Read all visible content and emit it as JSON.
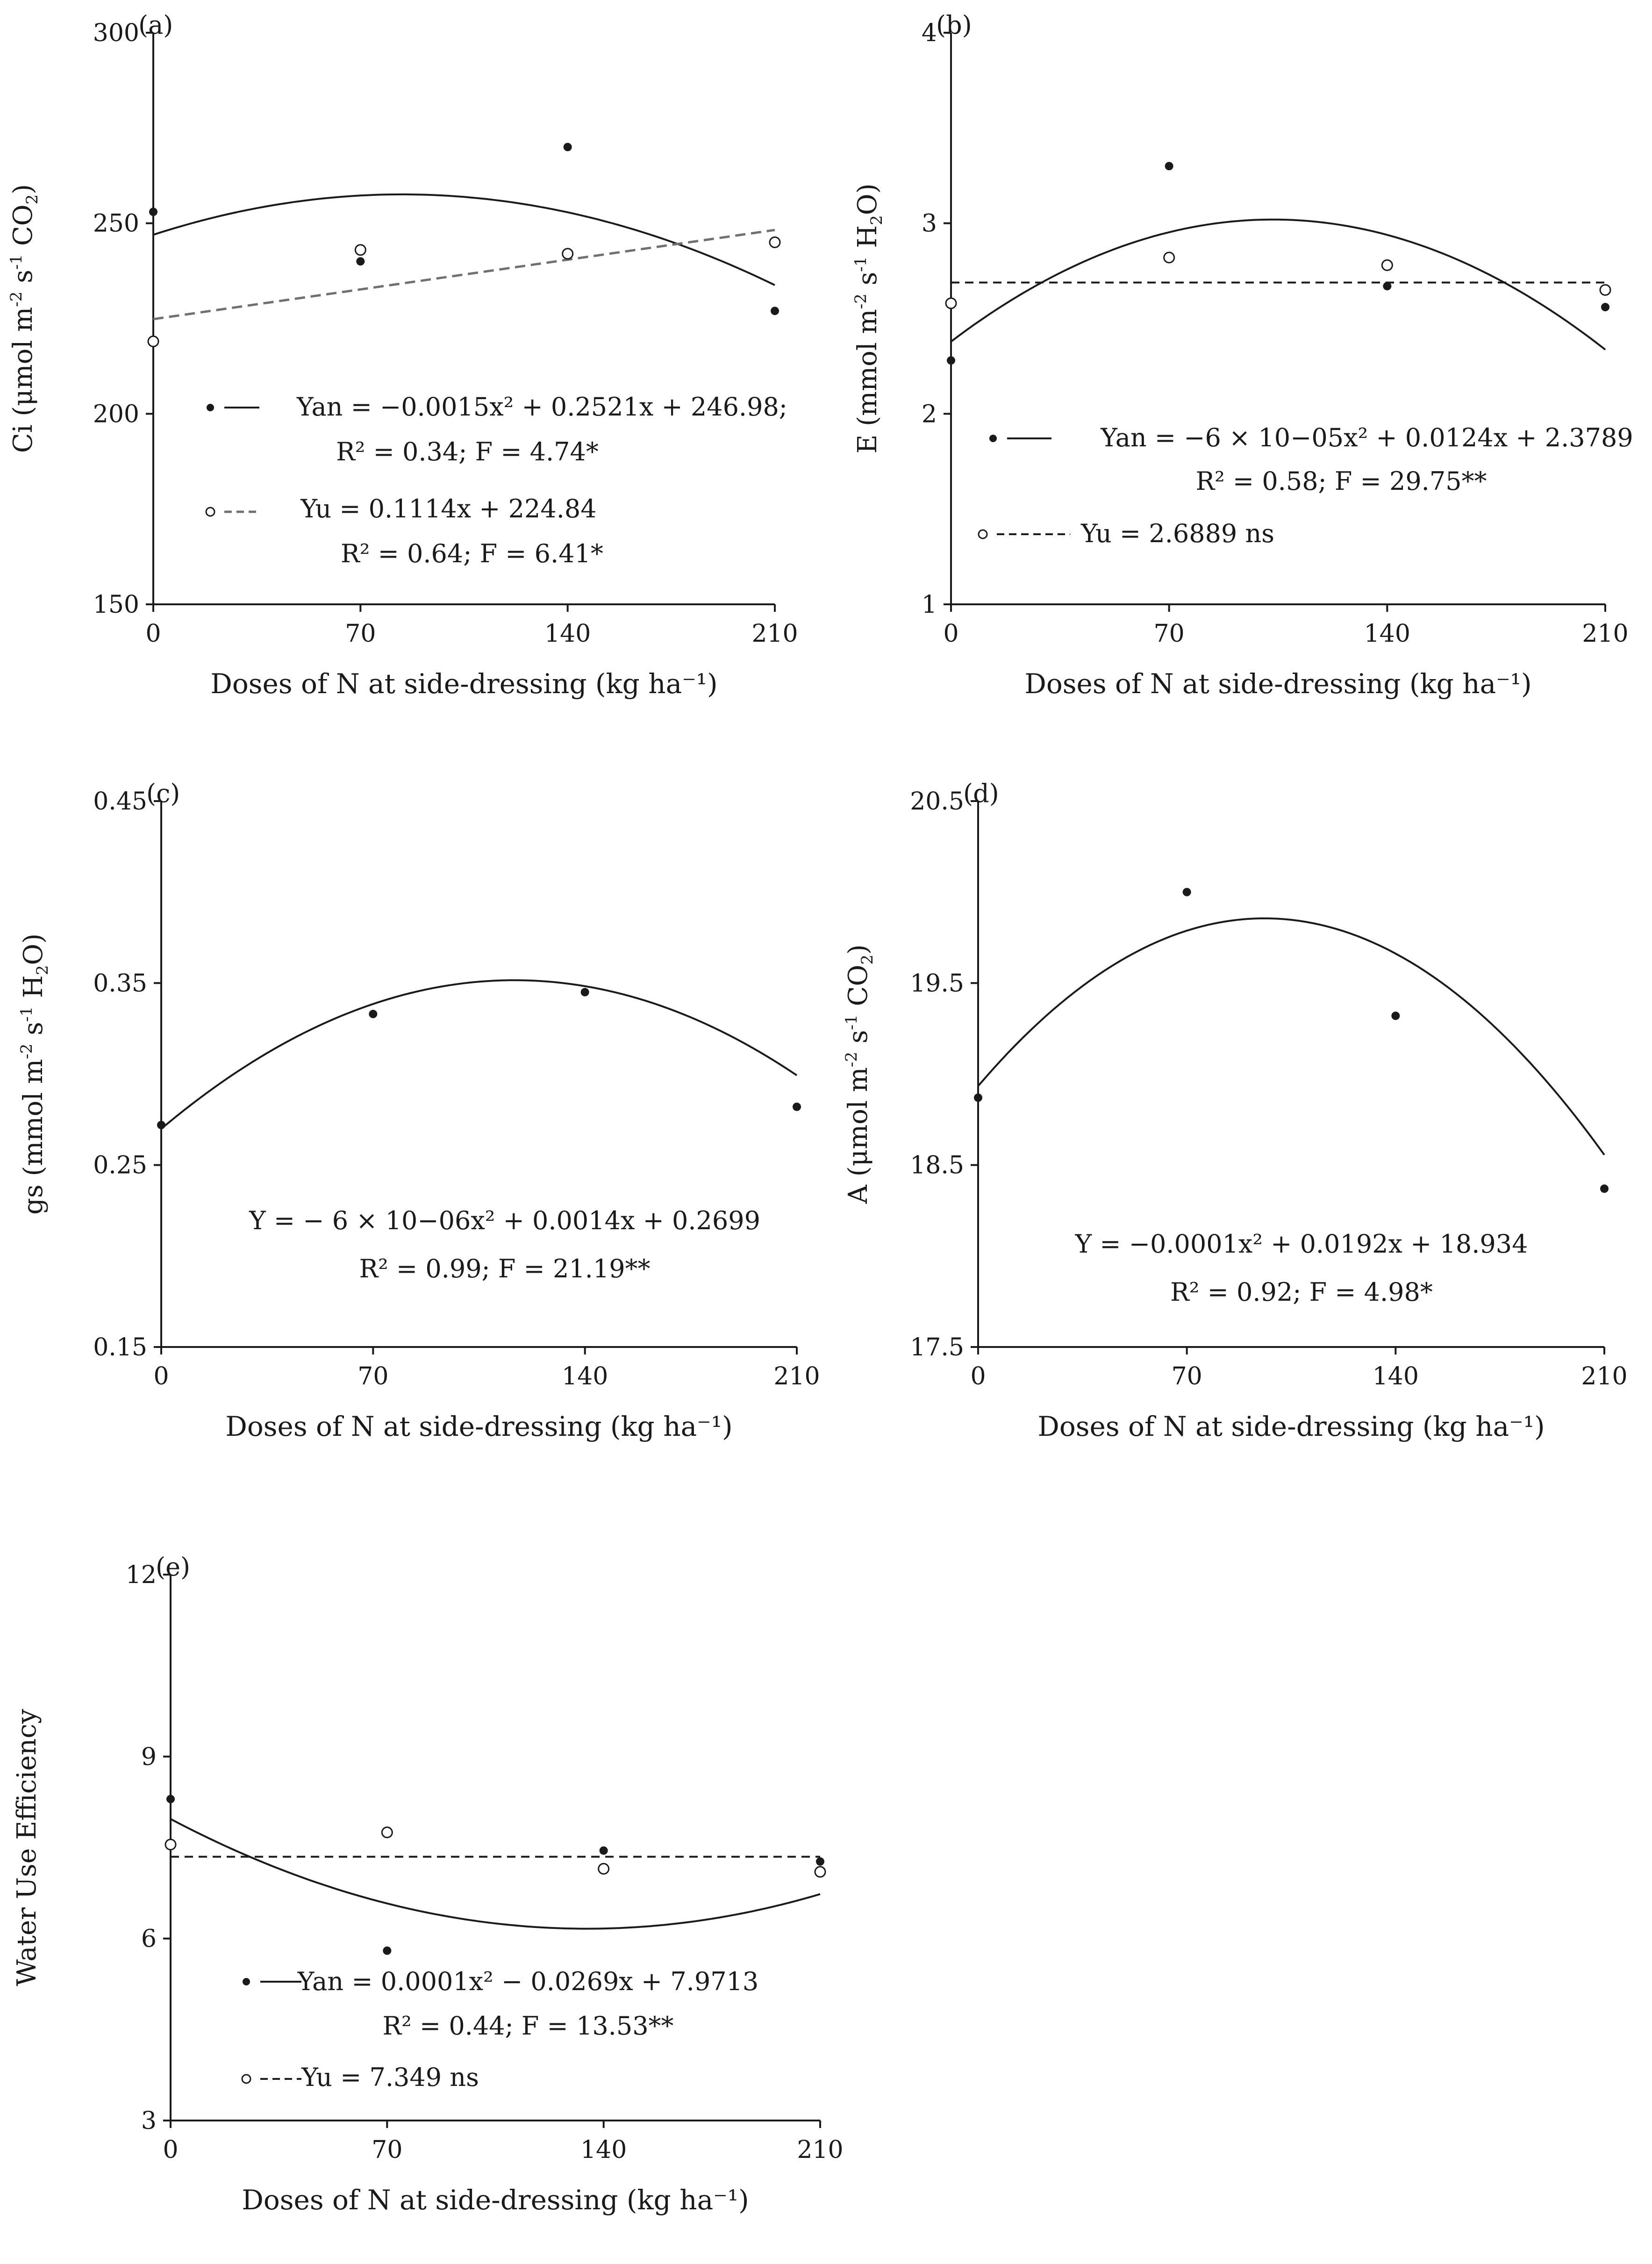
{
  "chart_data": [
    {
      "type": "scatter",
      "panel_label": "(a)",
      "xlabel": "Doses of N at side-dressing (kg ha⁻¹)",
      "ylabel_parts": [
        "Ci (μmol m",
        "-2",
        " s",
        "-1",
        " CO",
        "2",
        ")"
      ],
      "xlim": [
        0,
        210
      ],
      "ylim": [
        150,
        300
      ],
      "xticks": [
        "0",
        "70",
        "140",
        "210"
      ],
      "yticks": [
        "150",
        "200",
        "250",
        "300"
      ],
      "series": [
        {
          "name": "Yan",
          "marker": "filled",
          "x": [
            0,
            70,
            140,
            210
          ],
          "y": [
            253,
            240,
            270,
            227
          ],
          "fit": {
            "kind": "quadratic",
            "a": -0.0015,
            "b": 0.2521,
            "c": 246.98,
            "style": "solid"
          },
          "equation": "Yan = −0.0015x² + 0.2521x + 246.98;",
          "stats": "R² = 0.34; F = 4.74*"
        },
        {
          "name": "Yu",
          "marker": "open",
          "x": [
            0,
            70,
            140,
            210
          ],
          "y": [
            219,
            243,
            242,
            245
          ],
          "fit": {
            "kind": "linear",
            "b": 0.1114,
            "c": 224.84,
            "style": "dashed-gray"
          },
          "equation": "Yu = 0.1114x + 224.84",
          "stats": "R² = 0.64; F = 6.41*"
        }
      ]
    },
    {
      "type": "scatter",
      "panel_label": "(b)",
      "xlabel": "Doses of N at side-dressing (kg ha⁻¹)",
      "ylabel_parts": [
        "E (mmol m",
        "-2",
        " s",
        "-1",
        " H",
        "2",
        "O)"
      ],
      "xlim": [
        0,
        210
      ],
      "ylim": [
        1,
        4
      ],
      "xticks": [
        "0",
        "70",
        "140",
        "210"
      ],
      "yticks": [
        "1",
        "2",
        "3",
        "4"
      ],
      "series": [
        {
          "name": "Yan",
          "marker": "filled",
          "x": [
            0,
            70,
            140,
            210
          ],
          "y": [
            2.28,
            3.3,
            2.67,
            2.56
          ],
          "fit": {
            "kind": "quadratic",
            "a": -6e-05,
            "b": 0.0124,
            "c": 2.3789,
            "style": "solid"
          },
          "equation": "Yan = −6 × 10−05x² + 0.0124x + 2.3789",
          "stats": "R² = 0.58; F = 29.75**"
        },
        {
          "name": "Yu",
          "marker": "open",
          "x": [
            0,
            70,
            140,
            210
          ],
          "y": [
            2.58,
            2.82,
            2.78,
            2.65
          ],
          "fit": {
            "kind": "constant",
            "c": 2.6889,
            "style": "dashed"
          },
          "equation": "Yu = 2.6889 ns",
          "stats": ""
        }
      ]
    },
    {
      "type": "scatter",
      "panel_label": "(c)",
      "xlabel": "Doses of N at side-dressing (kg ha⁻¹)",
      "ylabel_parts": [
        "gs (mmol m",
        "-2",
        " s",
        "-1",
        " H",
        "2",
        "O)"
      ],
      "xlim": [
        0,
        210
      ],
      "ylim": [
        0.15,
        0.45
      ],
      "xticks": [
        "0",
        "70",
        "140",
        "210"
      ],
      "yticks": [
        "0.15",
        "0.25",
        "0.35",
        "0.45"
      ],
      "series": [
        {
          "name": "Y",
          "marker": "filled",
          "x": [
            0,
            70,
            140,
            210
          ],
          "y": [
            0.272,
            0.333,
            0.345,
            0.282
          ],
          "fit": {
            "kind": "quadratic",
            "a": -6e-06,
            "b": 0.0014,
            "c": 0.2699,
            "style": "solid"
          },
          "equation": "Y = − 6 × 10−06x² + 0.0014x + 0.2699",
          "stats": "R² = 0.99; F = 21.19**"
        }
      ]
    },
    {
      "type": "scatter",
      "panel_label": "(d)",
      "xlabel": "Doses of N at side-dressing (kg ha⁻¹)",
      "ylabel_parts": [
        "A (μmol m",
        "-2",
        " s",
        "-1",
        " CO",
        "2",
        ")"
      ],
      "xlim": [
        0,
        210
      ],
      "ylim": [
        17.5,
        20.5
      ],
      "xticks": [
        "0",
        "70",
        "140",
        "210"
      ],
      "yticks": [
        "17.5",
        "18.5",
        "19.5",
        "20.5"
      ],
      "series": [
        {
          "name": "Y",
          "marker": "filled",
          "x": [
            0,
            70,
            140,
            210
          ],
          "y": [
            18.87,
            20.0,
            19.32,
            18.37
          ],
          "fit": {
            "kind": "quadratic",
            "a": -0.0001,
            "b": 0.0192,
            "c": 18.934,
            "style": "solid"
          },
          "equation": "Y = −0.0001x² + 0.0192x + 18.934",
          "stats": "R² = 0.92; F = 4.98*"
        }
      ]
    },
    {
      "type": "scatter",
      "panel_label": "(e)",
      "xlabel": "Doses of N at side-dressing (kg ha⁻¹)",
      "ylabel_parts": [
        "Water Use Efficiency"
      ],
      "xlim": [
        0,
        210
      ],
      "ylim": [
        3,
        12
      ],
      "xticks": [
        "0",
        "70",
        "140",
        "210"
      ],
      "yticks": [
        "3",
        "6",
        "9",
        "12"
      ],
      "series": [
        {
          "name": "Yan",
          "marker": "filled",
          "x": [
            0,
            70,
            140,
            210
          ],
          "y": [
            8.3,
            5.8,
            7.45,
            7.27
          ],
          "fit": {
            "kind": "quadratic",
            "a": 0.0001,
            "b": -0.0269,
            "c": 7.9713,
            "style": "solid"
          },
          "equation": "Yan = 0.0001x² − 0.0269x + 7.9713",
          "stats": "R² = 0.44; F = 13.53**"
        },
        {
          "name": "Yu",
          "marker": "open",
          "x": [
            0,
            70,
            140,
            210
          ],
          "y": [
            7.55,
            7.75,
            7.15,
            7.1
          ],
          "fit": {
            "kind": "constant",
            "c": 7.349,
            "style": "dashed"
          },
          "equation": "Yu = 7.349 ns",
          "stats": ""
        }
      ]
    }
  ]
}
